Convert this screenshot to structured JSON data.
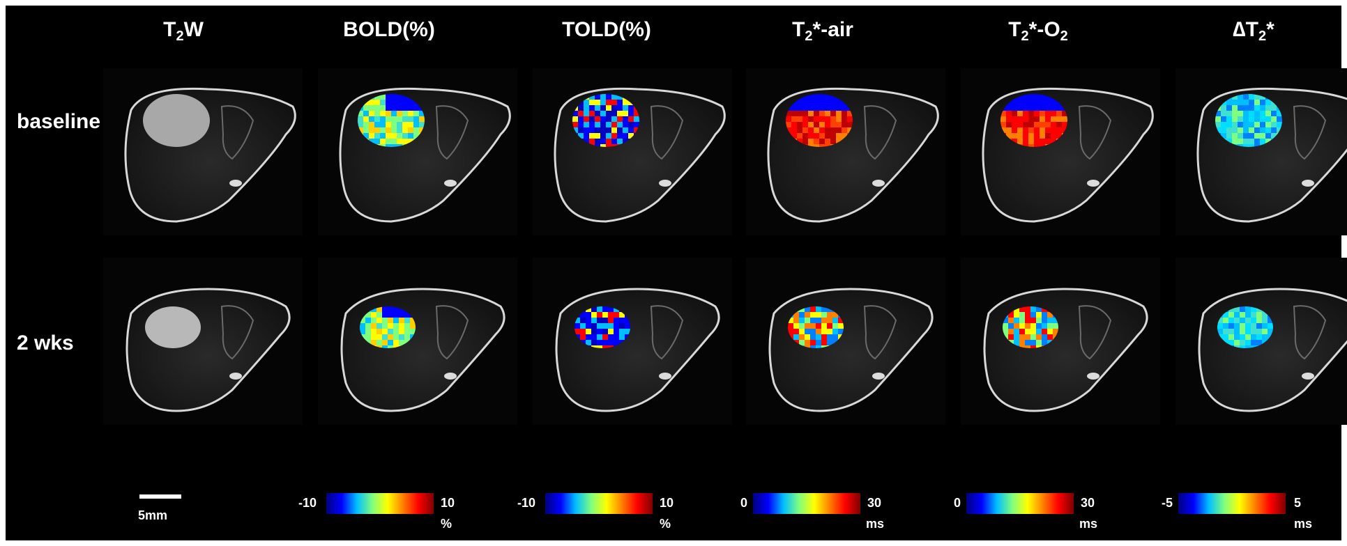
{
  "columns": [
    {
      "id": "t2w",
      "main": "T",
      "sub": "2",
      "rest": "W"
    },
    {
      "id": "bold",
      "main": "BOLD(%)",
      "sub": "",
      "rest": ""
    },
    {
      "id": "told",
      "main": "TOLD(%)",
      "sub": "",
      "rest": ""
    },
    {
      "id": "t2air",
      "main": "T",
      "sub": "2",
      "rest": "*-air"
    },
    {
      "id": "t2o2",
      "main": "T",
      "sub": "2",
      "rest": "*-O",
      "sub2": "2"
    },
    {
      "id": "dt2",
      "main": "∆T",
      "sub": "2",
      "rest": "*"
    }
  ],
  "rows": [
    {
      "id": "baseline",
      "label": "baseline"
    },
    {
      "id": "wks2",
      "label": "2 wks"
    }
  ],
  "scalebar": {
    "label": "5mm"
  },
  "colorbars": [
    {
      "id": "bold",
      "min": "-10",
      "max": "10",
      "unit": "%"
    },
    {
      "id": "told",
      "min": "-10",
      "max": "10",
      "unit": "%"
    },
    {
      "id": "t2air",
      "min": "0",
      "max": "30",
      "unit": "ms"
    },
    {
      "id": "t2o2",
      "min": "0",
      "max": "30",
      "unit": "ms"
    },
    {
      "id": "dt2",
      "min": "-5",
      "max": "5",
      "unit": "ms"
    }
  ],
  "colors": {
    "background": "#000000",
    "text": "#ffffff",
    "jet": [
      "#00007f",
      "#0000ff",
      "#00bfff",
      "#7fff7f",
      "#ffff00",
      "#ff7f00",
      "#ff0000",
      "#7f0000"
    ]
  }
}
